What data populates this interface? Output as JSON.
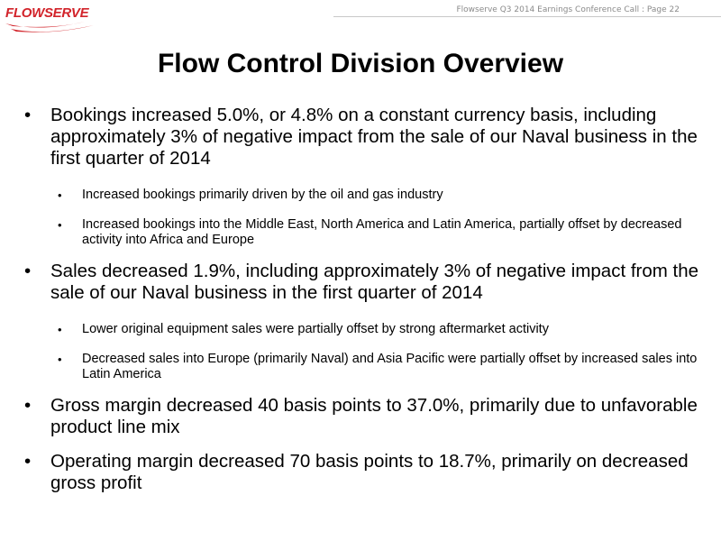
{
  "logo": {
    "text": "FLOWSERVE",
    "color": "#d2232a"
  },
  "header": {
    "note": "Flowserve  Q3 2014 Earnings Conference Call  :  Page 22"
  },
  "slide": {
    "title": "Flow Control Division Overview",
    "bullets": [
      {
        "text": "Bookings increased 5.0%, or 4.8% on a constant currency basis, including approximately 3% of negative impact from the sale of our Naval business in the first quarter of 2014",
        "sub": [
          "Increased bookings primarily driven by the oil and gas industry",
          "Increased bookings into the Middle East, North America and Latin America, partially offset by decreased activity into Africa and Europe"
        ]
      },
      {
        "text": "Sales decreased 1.9%, including approximately 3% of negative impact from the sale of our Naval business in the first quarter of 2014",
        "sub": [
          "Lower original equipment sales were partially offset by strong aftermarket activity",
          "Decreased sales into Europe (primarily Naval) and Asia Pacific were partially offset by increased sales into Latin America"
        ]
      },
      {
        "text": "Gross margin decreased 40 basis points to 37.0%, primarily due to unfavorable product line mix",
        "sub": []
      },
      {
        "text": "Operating margin decreased 70 basis points to 18.7%, primarily on decreased gross profit",
        "sub": []
      }
    ]
  }
}
